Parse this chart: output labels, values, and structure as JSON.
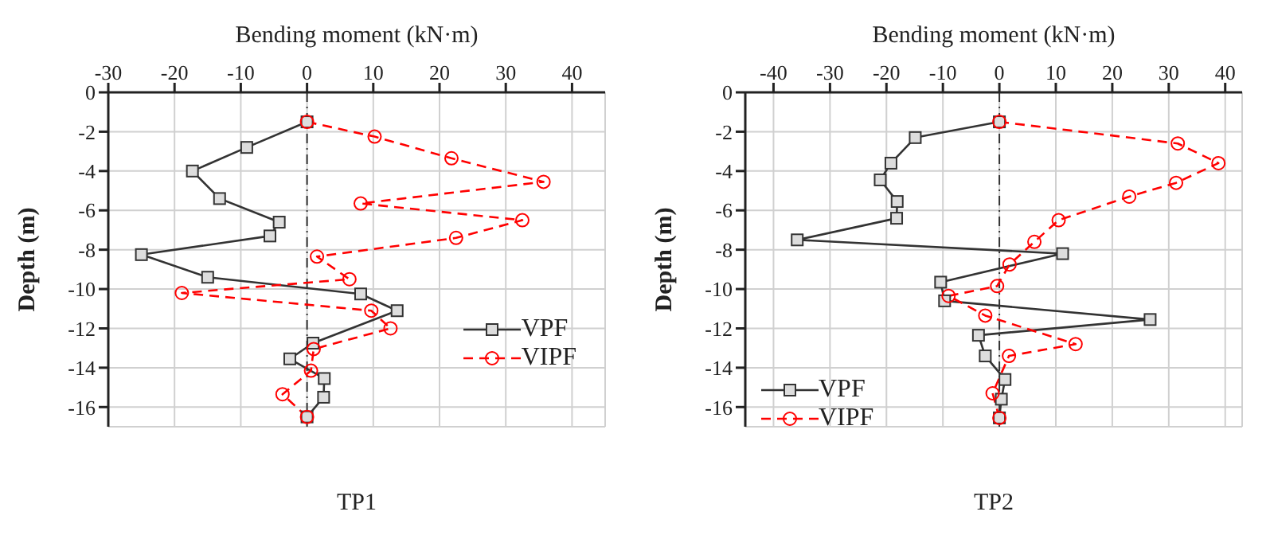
{
  "chart_data": [
    {
      "type": "line",
      "title": "TP1",
      "xlabel": "Bending moment (kN·m)",
      "ylabel": "Depth (m)",
      "xlim": [
        -30,
        45
      ],
      "xticks": [
        -30,
        -20,
        -10,
        0,
        10,
        20,
        30,
        40
      ],
      "ylim": [
        -17,
        0
      ],
      "yticks": [
        0,
        -2,
        -4,
        -6,
        -8,
        -10,
        -12,
        -14,
        -16
      ],
      "grid": true,
      "legend": "right",
      "ref_lines": [
        {
          "axis": "x",
          "value": 0,
          "color": "#333333",
          "line_style": "dashdot"
        }
      ],
      "series": [
        {
          "name": "VPF",
          "color": "#333333",
          "marker": "square",
          "line_style": "solid",
          "x": [
            0,
            -9.1,
            -17.3,
            -13.2,
            -4.2,
            -5.6,
            -25,
            -15,
            8.1,
            13.6,
            0.9,
            -2.6,
            2.6,
            2.5,
            0
          ],
          "values": [
            -1.5,
            -2.8,
            -4.0,
            -5.4,
            -6.6,
            -7.3,
            -8.25,
            -9.4,
            -10.25,
            -11.1,
            -12.75,
            -13.55,
            -14.55,
            -15.5,
            -16.5
          ]
        },
        {
          "name": "VIPF",
          "color": "#ff0000",
          "marker": "circle",
          "line_style": "dashed",
          "x": [
            0,
            10.2,
            21.8,
            35.7,
            8.1,
            32.5,
            22.5,
            1.5,
            6.4,
            -18.9,
            9.7,
            12.6,
            1.0,
            0.6,
            -3.7,
            0
          ],
          "values": [
            -1.5,
            -2.25,
            -3.35,
            -4.55,
            -5.65,
            -6.5,
            -7.4,
            -8.35,
            -9.5,
            -10.2,
            -11.1,
            -12.0,
            -13.05,
            -14.15,
            -15.35,
            -16.5
          ]
        }
      ]
    },
    {
      "type": "line",
      "title": "TP2",
      "xlabel": "Bending moment (kN·m)",
      "ylabel": "Depth (m)",
      "xlim": [
        -45,
        43
      ],
      "xticks": [
        -40,
        -30,
        -20,
        -10,
        0,
        10,
        20,
        30,
        40
      ],
      "ylim": [
        -17,
        0
      ],
      "yticks": [
        0,
        -2,
        -4,
        -6,
        -8,
        -10,
        -12,
        -14,
        -16
      ],
      "grid": true,
      "legend": "left",
      "ref_lines": [
        {
          "axis": "x",
          "value": 0,
          "color": "#333333",
          "line_style": "dashdot"
        }
      ],
      "series": [
        {
          "name": "VPF",
          "color": "#333333",
          "marker": "square",
          "line_style": "solid",
          "x": [
            0,
            -14.9,
            -19.2,
            -21.1,
            -18.1,
            -18.2,
            -35.8,
            11.2,
            -10.4,
            -9.7,
            26.7,
            -3.7,
            -2.5,
            1.0,
            0.35,
            0
          ],
          "values": [
            -1.5,
            -2.3,
            -3.6,
            -4.45,
            -5.55,
            -6.4,
            -7.5,
            -8.2,
            -9.65,
            -10.6,
            -11.55,
            -12.35,
            -13.4,
            -14.6,
            -15.6,
            -16.55
          ]
        },
        {
          "name": "VIPF",
          "color": "#ff0000",
          "marker": "circle",
          "line_style": "dashed",
          "x": [
            0,
            31.6,
            38.8,
            31.3,
            23.0,
            10.5,
            6.2,
            1.8,
            -0.4,
            -9.0,
            -2.5,
            13.5,
            1.7,
            -1.2,
            0
          ],
          "values": [
            -1.5,
            -2.6,
            -3.6,
            -4.6,
            -5.3,
            -6.5,
            -7.6,
            -8.75,
            -9.85,
            -10.35,
            -11.35,
            -12.8,
            -13.4,
            -15.3,
            -16.55
          ]
        }
      ]
    }
  ]
}
